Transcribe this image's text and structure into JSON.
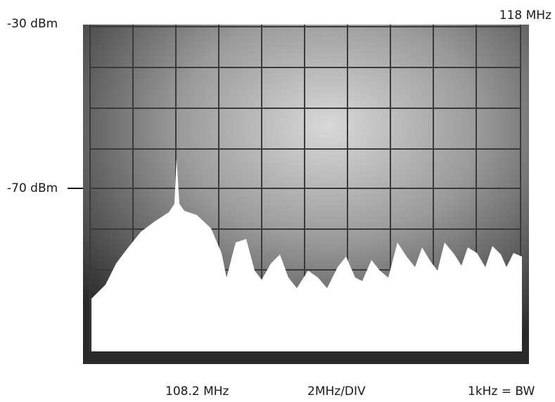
{
  "labels": {
    "top_level": "-30 dBm",
    "top_frequency": "118 MHz",
    "mid_level": "-70 dBm",
    "start_frequency": "108.2 MHz",
    "span": "2MHz/DIV",
    "bandwidth": "1kHz = BW"
  }
}
